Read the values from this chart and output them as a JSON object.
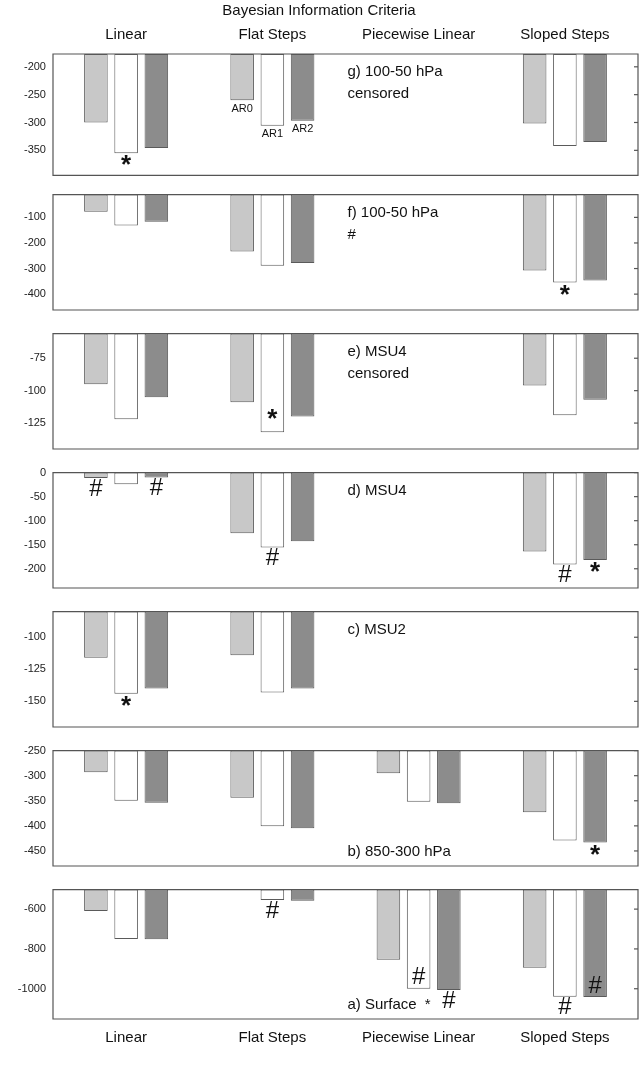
{
  "chart_data": [
    {
      "type": "bar",
      "title": "Bayesian Information Criteria",
      "categories": [
        "Linear",
        "Flat Steps",
        "Piecewise Linear",
        "Sloped Steps"
      ],
      "series": [
        {
          "name": "AR0",
          "color": "#c8c8c8",
          "values": [
            -300,
            -260,
            null,
            -302
          ]
        },
        {
          "name": "AR1",
          "color": "#ffffff",
          "values": [
            -355,
            -306,
            null,
            -342
          ]
        },
        {
          "name": "AR2",
          "color": "#8c8c8c",
          "values": [
            -346,
            -297,
            null,
            -335
          ]
        }
      ],
      "ylim": [
        -395,
        -177
      ],
      "yticks": [
        -200,
        -250,
        -300,
        -350
      ],
      "annotations": [
        "g) 100-50 hPa",
        "censored",
        {
          "text": "*",
          "x": "Linear",
          "y": -355
        }
      ]
    },
    {
      "type": "bar",
      "categories": [
        "Linear",
        "Flat Steps",
        "Piecewise Linear",
        "Sloped Steps"
      ],
      "tick_labels": "y",
      "series": [
        {
          "color": "#c8c8c8",
          "values": [
            -78,
            -233,
            null,
            -308
          ]
        },
        {
          "color": "#ffffff",
          "values": [
            -132,
            -289,
            null,
            -355
          ]
        },
        {
          "color": "#8c8c8c",
          "values": [
            -117,
            -278,
            null,
            -347
          ]
        }
      ],
      "ylim": [
        -462,
        -11
      ],
      "yticks": [
        -100,
        -200,
        -300,
        -400
      ],
      "annotations": [
        "f) 100-50 hPa",
        "#",
        {
          "text": "*",
          "x": "Sloped Steps",
          "y": -355
        }
      ]
    },
    {
      "type": "bar",
      "categories": [
        "Linear",
        "Flat Steps",
        "Piecewise Linear",
        "Sloped Steps"
      ],
      "tick_labels": "y",
      "series": [
        {
          "color": "#c8c8c8",
          "values": [
            -95,
            -109,
            null,
            -96
          ]
        },
        {
          "color": "#ffffff",
          "values": [
            -122,
            -132,
            null,
            -119
          ]
        },
        {
          "color": "#8c8c8c",
          "values": [
            -105,
            -120,
            null,
            -107
          ]
        }
      ],
      "ylim": [
        -145,
        -56
      ],
      "yticks": [
        -75,
        -100,
        -125
      ],
      "annotations": [
        "e) MSU4",
        "censored",
        {
          "text": "*",
          "x": "Flat Steps",
          "y": -132
        }
      ]
    },
    {
      "type": "bar",
      "categories": [
        "Linear",
        "Flat Steps",
        "Piecewise Linear",
        "Sloped Steps"
      ],
      "tick_labels": "y",
      "series": [
        {
          "color": "#c8c8c8",
          "values": [
            -11,
            -126,
            null,
            -164
          ]
        },
        {
          "color": "#ffffff",
          "values": [
            -24,
            -156,
            null,
            -191
          ]
        },
        {
          "color": "#8c8c8c",
          "values": [
            -10,
            -143,
            null,
            -182
          ]
        }
      ],
      "ylim": [
        -240,
        0
      ],
      "yticks": [
        0,
        -50,
        -100,
        -150,
        -200
      ],
      "annotations": [
        "d) MSU4",
        {
          "text": "#",
          "x": "Linear",
          "y": -11
        },
        {
          "text": "#",
          "x": "Linear",
          "y": -10
        },
        {
          "text": "#",
          "x": "Flat Steps",
          "y": -156
        },
        {
          "text": "#",
          "x": "Sloped Steps",
          "y": -191
        },
        {
          "text": "*",
          "x": "Sloped Steps",
          "y": -182
        }
      ]
    },
    {
      "type": "bar",
      "categories": [
        "Linear",
        "Flat Steps",
        "Piecewise Linear",
        "Sloped Steps"
      ],
      "tick_labels": "y",
      "series": [
        {
          "color": "#c8c8c8",
          "values": [
            -116,
            -114,
            null,
            null
          ]
        },
        {
          "color": "#ffffff",
          "values": [
            -144,
            -143,
            null,
            null
          ]
        },
        {
          "color": "#8c8c8c",
          "values": [
            -140,
            -140,
            null,
            null
          ]
        }
      ],
      "ylim": [
        -170,
        -80
      ],
      "yticks": [
        -100,
        -125,
        -150
      ],
      "annotations": [
        "c) MSU2",
        {
          "text": "*",
          "x": "Linear",
          "y": -144
        }
      ]
    },
    {
      "type": "bar",
      "categories": [
        "Linear",
        "Flat Steps",
        "Piecewise Linear",
        "Sloped Steps"
      ],
      "tick_labels": "y",
      "series": [
        {
          "color": "#c8c8c8",
          "values": [
            -293,
            -344,
            -295,
            -373
          ]
        },
        {
          "color": "#ffffff",
          "values": [
            -350,
            -401,
            -352,
            -429
          ]
        },
        {
          "color": "#8c8c8c",
          "values": [
            -354,
            -405,
            -355,
            -433
          ]
        }
      ],
      "ylim": [
        -480,
        -250
      ],
      "yticks": [
        -250,
        -300,
        -350,
        -400,
        -450
      ],
      "annotations": [
        "b) 850-300 hPa",
        {
          "text": "*",
          "x": "Sloped Steps",
          "y": -433
        }
      ]
    },
    {
      "type": "bar",
      "categories": [
        "Linear",
        "Flat Steps",
        "Piecewise Linear",
        "Sloped Steps"
      ],
      "series": [
        {
          "color": "#c8c8c8",
          "values": [
            -610,
            null,
            -854,
            -894
          ]
        },
        {
          "color": "#ffffff",
          "values": [
            -750,
            -554,
            -1000,
            -1040
          ]
        },
        {
          "color": "#8c8c8c",
          "values": [
            -752,
            -558,
            -1006,
            -1042
          ]
        }
      ],
      "ylim": [
        -1152,
        -502
      ],
      "yticks": [
        -600,
        -800,
        -1000
      ],
      "annotations": [
        "a) Surface",
        {
          "text": "#",
          "x": "Flat Steps",
          "y": -554
        },
        {
          "text": "#",
          "x": "Piecewise Linear",
          "y": -1000
        },
        {
          "text": "#",
          "x": "Piecewise Linear",
          "y": -1006
        },
        "*",
        {
          "text": "#",
          "x": "Sloped Steps",
          "y": -1040
        },
        {
          "text": "#",
          "x": "Sloped Steps",
          "y": -1042
        }
      ]
    }
  ]
}
